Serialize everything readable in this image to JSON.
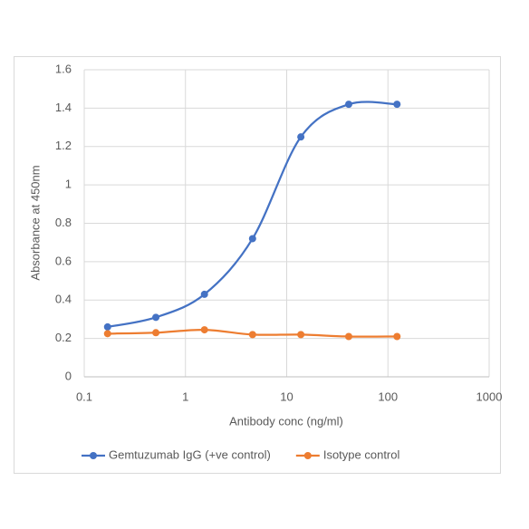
{
  "chart_data": {
    "type": "line",
    "xlabel": "Antibody conc (ng/ml)",
    "ylabel": "Absorbance at 450nm",
    "xscale": "log",
    "xlim": [
      0.1,
      1000
    ],
    "xticks": [
      0.1,
      1,
      10,
      100,
      1000
    ],
    "ylim": [
      0,
      1.6
    ],
    "yticks": [
      0,
      0.2,
      0.4,
      0.6,
      0.8,
      1,
      1.2,
      1.4,
      1.6
    ],
    "grid": true,
    "legend": "bottom",
    "x": [
      0.17,
      0.51,
      1.54,
      4.6,
      13.8,
      41,
      123
    ],
    "series": [
      {
        "name": "Gemtuzumab IgG (+ve control)",
        "color": "#4472c4",
        "values": [
          0.26,
          0.31,
          0.43,
          0.72,
          1.25,
          1.42,
          1.42
        ]
      },
      {
        "name": "Isotype control",
        "color": "#ed7d31",
        "values": [
          0.225,
          0.23,
          0.245,
          0.22,
          0.22,
          0.21,
          0.21
        ]
      }
    ]
  }
}
